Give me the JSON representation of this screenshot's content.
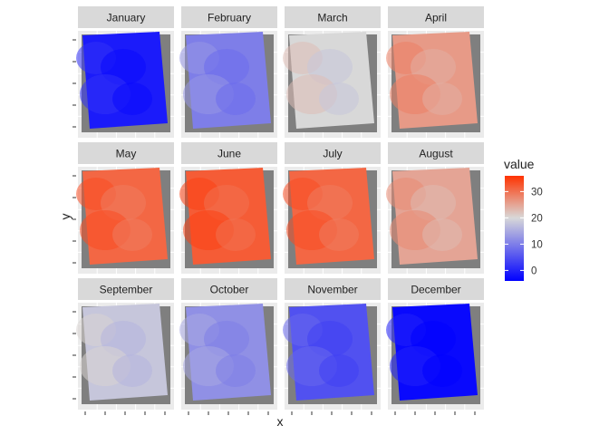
{
  "chart_data": {
    "type": "heatmap",
    "xlabel": "x",
    "ylabel": "y",
    "facets": [
      "January",
      "February",
      "March",
      "April",
      "May",
      "June",
      "July",
      "August",
      "September",
      "October",
      "November",
      "December"
    ],
    "facet_mean_value": [
      -1,
      10,
      20,
      26,
      31,
      32,
      31,
      25,
      18,
      12,
      5,
      -3
    ],
    "legend": {
      "title": "value",
      "ticks": [
        0,
        10,
        20,
        30
      ],
      "range": [
        -4,
        36
      ],
      "colors": {
        "low": "#0000ff",
        "mid": "#d8d8d8",
        "high": "#ff3300"
      },
      "placement": "right"
    },
    "panel_background": "#7f7f7f",
    "strip_background": "#d9d9d9"
  }
}
